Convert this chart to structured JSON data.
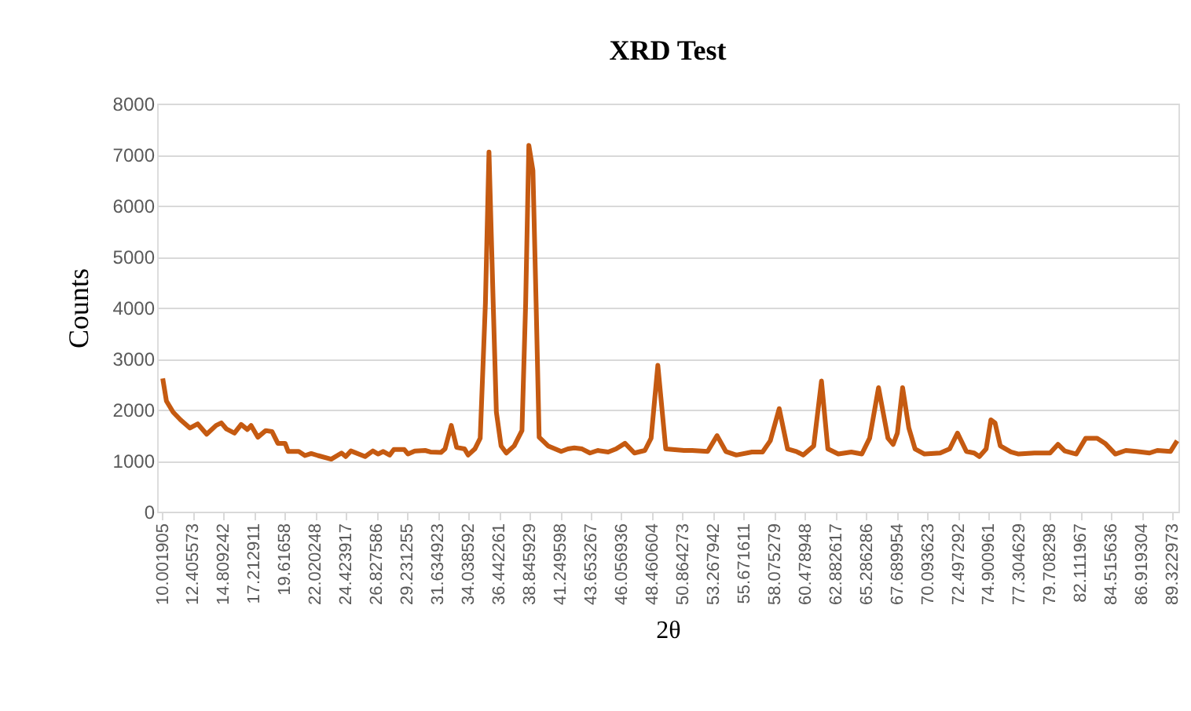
{
  "chart_data": {
    "type": "line",
    "title": "XRD Test",
    "xlabel": "2θ",
    "ylabel": "Counts",
    "x": [
      10.04,
      10.33,
      10.86,
      11.44,
      12.18,
      12.79,
      13.49,
      14.23,
      14.64,
      15.05,
      15.67,
      16.2,
      16.69,
      16.98,
      17.51,
      18.13,
      18.62,
      19.08,
      19.65,
      19.89,
      20.72,
      21.21,
      21.7,
      22.23,
      23.27,
      24.08,
      24.41,
      24.82,
      25.93,
      26.54,
      26.96,
      27.36,
      27.86,
      28.19,
      29.0,
      29.3,
      29.83,
      30.65,
      31.06,
      31.88,
      32.21,
      32.7,
      33.12,
      33.74,
      34.02,
      34.55,
      34.97,
      35.38,
      35.66,
      35.99,
      36.24,
      36.61,
      37.02,
      37.64,
      38.25,
      38.54,
      38.79,
      39.11,
      39.36,
      39.6,
      40.3,
      41.33,
      41.86,
      42.36,
      42.97,
      43.59,
      44.2,
      45.02,
      45.64,
      46.34,
      47.08,
      47.9,
      48.39,
      48.92,
      49.54,
      50.98,
      51.6,
      52.83,
      53.57,
      54.26,
      55.08,
      56.31,
      57.14,
      57.75,
      58.45,
      59.11,
      59.8,
      60.34,
      61.16,
      61.77,
      62.27,
      63.09,
      64.11,
      64.94,
      65.55,
      66.25,
      66.99,
      67.4,
      67.73,
      68.14,
      68.63,
      69.12,
      69.86,
      71.09,
      71.83,
      72.45,
      73.15,
      73.76,
      74.17,
      74.7,
      75.07,
      75.4,
      75.81,
      76.64,
      77.25,
      78.49,
      79.72,
      80.34,
      80.87,
      81.78,
      82.52,
      83.42,
      84.04,
      84.85,
      85.67,
      86.5,
      87.53,
      88.14,
      89.17,
      89.7
    ],
    "series": [
      {
        "color": "#c55a11",
        "values": [
          2610,
          2170,
          1950,
          1800,
          1640,
          1720,
          1520,
          1690,
          1740,
          1620,
          1540,
          1710,
          1610,
          1690,
          1460,
          1590,
          1570,
          1340,
          1340,
          1180,
          1180,
          1100,
          1140,
          1100,
          1030,
          1150,
          1080,
          1190,
          1080,
          1190,
          1130,
          1180,
          1110,
          1220,
          1220,
          1130,
          1190,
          1200,
          1170,
          1160,
          1230,
          1690,
          1260,
          1230,
          1110,
          1230,
          1440,
          4090,
          7050,
          4090,
          1950,
          1290,
          1150,
          1290,
          1590,
          4090,
          7180,
          6690,
          4090,
          1460,
          1290,
          1180,
          1230,
          1250,
          1230,
          1150,
          1200,
          1170,
          1230,
          1340,
          1150,
          1200,
          1440,
          2870,
          1230,
          1200,
          1200,
          1180,
          1490,
          1180,
          1110,
          1170,
          1170,
          1390,
          2020,
          1230,
          1180,
          1110,
          1290,
          2560,
          1230,
          1130,
          1170,
          1130,
          1440,
          2430,
          1440,
          1320,
          1540,
          2430,
          1640,
          1230,
          1130,
          1150,
          1230,
          1540,
          1180,
          1150,
          1080,
          1230,
          1800,
          1740,
          1290,
          1170,
          1130,
          1150,
          1150,
          1320,
          1190,
          1130,
          1440,
          1440,
          1340,
          1130,
          1200,
          1180,
          1150,
          1200,
          1180,
          1390
        ]
      }
    ],
    "xlim": [
      9.6,
      89.8
    ],
    "xticks": [
      10.001905,
      12.405573,
      14.809242,
      17.212911,
      19.61658,
      22.020248,
      24.423917,
      26.827586,
      29.231255,
      31.634923,
      34.038592,
      36.442261,
      38.845929,
      41.249598,
      43.653267,
      46.056936,
      48.460604,
      50.864273,
      53.267942,
      55.671611,
      58.075279,
      60.478948,
      62.882617,
      65.286286,
      67.689954,
      70.093623,
      72.497292,
      74.900961,
      77.304629,
      79.708298,
      82.111967,
      84.515636,
      86.919304,
      89.322973
    ],
    "ylim": [
      0,
      8000
    ],
    "yticks": [
      0,
      1000,
      2000,
      3000,
      4000,
      5000,
      6000,
      7000,
      8000
    ],
    "grid": "y",
    "marker": "none",
    "line_style": "solid"
  }
}
